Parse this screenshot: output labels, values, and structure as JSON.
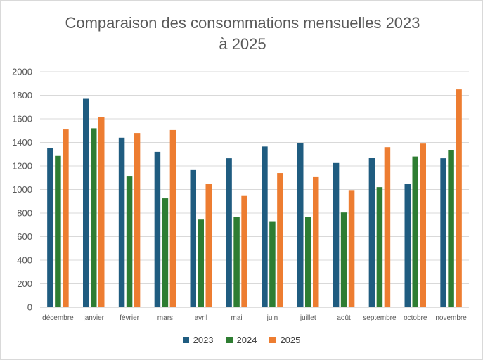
{
  "chart_data": {
    "type": "bar",
    "title_line1": "Comparaison des consommations mensuelles 2023",
    "title_line2": "à 2025",
    "xlabel": "",
    "ylabel": "",
    "ylim": [
      0,
      2000
    ],
    "yticks": [
      0,
      200,
      400,
      600,
      800,
      1000,
      1200,
      1400,
      1600,
      1800,
      2000
    ],
    "grid": true,
    "legend_position": "bottom",
    "categories": [
      "décembre",
      "janvier",
      "février",
      "mars",
      "avril",
      "mai",
      "juin",
      "juillet",
      "août",
      "septembre",
      "octobre",
      "novembre"
    ],
    "series": [
      {
        "name": "2023",
        "color": "#1f5c80",
        "values": [
          1350,
          1770,
          1440,
          1320,
          1165,
          1265,
          1365,
          1395,
          1225,
          1270,
          1050,
          1265
        ]
      },
      {
        "name": "2024",
        "color": "#2e7d32",
        "values": [
          1285,
          1520,
          1110,
          925,
          745,
          770,
          725,
          770,
          805,
          1020,
          1280,
          1335
        ]
      },
      {
        "name": "2025",
        "color": "#ed7d31",
        "values": [
          1510,
          1615,
          1480,
          1505,
          1050,
          945,
          1140,
          1105,
          995,
          1360,
          1390,
          1850
        ]
      }
    ]
  }
}
